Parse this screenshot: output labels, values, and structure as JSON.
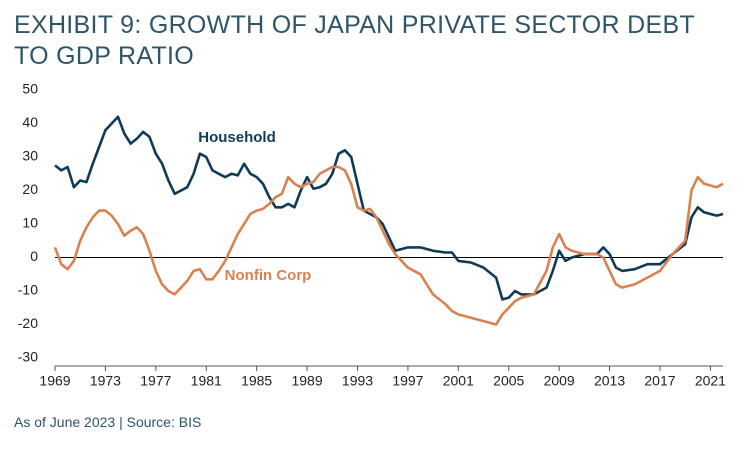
{
  "chart_data": {
    "type": "line",
    "title": "EXHIBIT 9: GROWTH OF JAPAN PRIVATE SECTOR DEBT TO GDP RATIO",
    "note": "As of June 2023 | Source: BIS",
    "x": [
      1969,
      1969.5,
      1970,
      1970.5,
      1971,
      1971.5,
      1972,
      1972.5,
      1973,
      1973.5,
      1974,
      1974.5,
      1975,
      1975.5,
      1976,
      1976.5,
      1977,
      1977.5,
      1978,
      1978.5,
      1979,
      1979.5,
      1980,
      1980.5,
      1981,
      1981.5,
      1982,
      1982.5,
      1983,
      1983.5,
      1984,
      1984.5,
      1985,
      1985.5,
      1986,
      1986.5,
      1987,
      1987.5,
      1988,
      1988.5,
      1989,
      1989.5,
      1990,
      1990.5,
      1991,
      1991.5,
      1992,
      1992.5,
      1993,
      1993.5,
      1994,
      1994.5,
      1995,
      1995.5,
      1996,
      1997,
      1998,
      1999,
      2000,
      2000.5,
      2001,
      2002,
      2003,
      2004,
      2004.5,
      2005,
      2005.5,
      2006,
      2007,
      2008,
      2008.5,
      2009,
      2009.5,
      2010,
      2011,
      2012,
      2012.5,
      2013,
      2013.5,
      2014,
      2015,
      2016,
      2017,
      2018,
      2019,
      2019.5,
      2020,
      2020.5,
      2021,
      2021.5,
      2022
    ],
    "series": [
      {
        "name": "Household",
        "color": "#0f3b57",
        "values": [
          27.5,
          26,
          27,
          21,
          23,
          22.5,
          28,
          33,
          38,
          40,
          42,
          37,
          34,
          35.5,
          37.5,
          36,
          31,
          28,
          23,
          19,
          20,
          21,
          25,
          31,
          30,
          26,
          25,
          24,
          25,
          24.5,
          28,
          25,
          24,
          22,
          18,
          15,
          15,
          16,
          15,
          20,
          24,
          20.5,
          21,
          22,
          25,
          31,
          32,
          30,
          22,
          14,
          13,
          12,
          10,
          6,
          2,
          3,
          3,
          2,
          1.5,
          1.5,
          -1,
          -1.5,
          -3,
          -6,
          -12.5,
          -12,
          -10,
          -11,
          -11,
          -9,
          -4,
          2,
          -1,
          0,
          1,
          1,
          3,
          1,
          -3,
          -4,
          -3.5,
          -2,
          -2,
          1,
          4,
          12,
          15,
          13.5,
          13,
          12.5,
          13
        ]
      },
      {
        "name": "Nonfin Corp",
        "color": "#d9824f",
        "values": [
          3,
          -2,
          -3.5,
          -1,
          5,
          9,
          12,
          14,
          14,
          12.5,
          10,
          6.5,
          8,
          9,
          7,
          2,
          -4,
          -8,
          -10,
          -11,
          -9,
          -7,
          -4,
          -3.5,
          -6.5,
          -6.5,
          -4,
          -1,
          3,
          7,
          10,
          13,
          14,
          14.5,
          16,
          18,
          19,
          24,
          22,
          21,
          22,
          22.5,
          25,
          26,
          27,
          27,
          26,
          22,
          15,
          14,
          14.5,
          12,
          8,
          4,
          1,
          -3,
          -5,
          -11,
          -14,
          -16,
          -17,
          -18,
          -19,
          -20,
          -17,
          -15,
          -13,
          -12,
          -11,
          -4,
          3,
          7,
          3,
          2,
          1,
          1,
          0,
          -4,
          -8,
          -9,
          -8,
          -6,
          -4,
          1,
          5,
          20,
          24,
          22,
          21.5,
          21,
          22
        ]
      }
    ],
    "xlim": [
      1969,
      2022
    ],
    "xticks": [
      1969,
      1973,
      1977,
      1981,
      1985,
      1989,
      1993,
      1997,
      2001,
      2005,
      2009,
      2013,
      2017,
      2021
    ],
    "ylim": [
      -30,
      50
    ],
    "yticks": [
      -30,
      -20,
      -10,
      0,
      10,
      20,
      30,
      40,
      50
    ]
  }
}
